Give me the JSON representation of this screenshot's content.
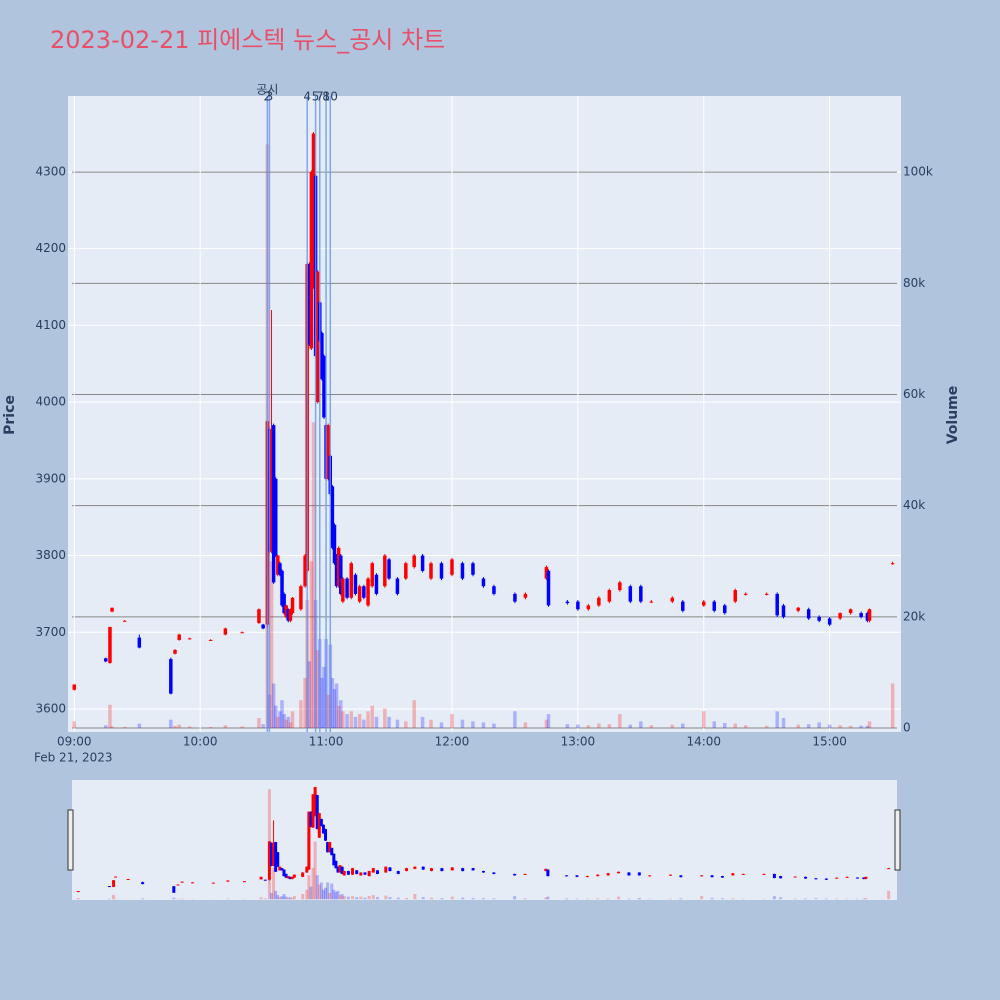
{
  "chart_data": {
    "type": "candlestick",
    "title": "2023-02-21 피에스텍 뉴스_공시 차트",
    "y_title": "Price",
    "y2_title": "Volume",
    "x_date_label": "Feb 21, 2023",
    "xlim": [
      "08:57",
      "15:34"
    ],
    "xticks": [
      "09:00",
      "10:00",
      "11:00",
      "12:00",
      "13:00",
      "14:00",
      "15:00"
    ],
    "ylim": [
      3570,
      4399
    ],
    "yticks": [
      3600,
      3700,
      3800,
      3900,
      4000,
      4100,
      4200,
      4300
    ],
    "y2lim": [
      -720,
      113700
    ],
    "y2ticks": [
      0,
      {
        "value": 20000,
        "label": "20k"
      },
      {
        "value": 40000,
        "label": "40k"
      },
      {
        "value": 60000,
        "label": "60k"
      },
      {
        "value": 80000,
        "label": "80k"
      },
      {
        "value": 100000,
        "label": "100k"
      }
    ],
    "increasing_color": "#ff0000",
    "decreasing_color": "#0000ff",
    "annotation_header": {
      "x": "10:32",
      "text": "공시"
    },
    "annotations": [
      {
        "x": "10:32",
        "text": "2"
      },
      {
        "x": "10:33",
        "text": "3"
      },
      {
        "x": "10:51",
        "text": "4"
      },
      {
        "x": "10:55",
        "text": "5"
      },
      {
        "x": "10:57",
        "text": "7"
      },
      {
        "x": "11:00",
        "text": "8"
      },
      {
        "x": "11:02",
        "text": "10"
      }
    ],
    "x": [
      "09:00",
      "09:15",
      "09:17",
      "09:18",
      "09:24",
      "09:31",
      "09:46",
      "09:48",
      "09:50",
      "09:55",
      "10:05",
      "10:12",
      "10:20",
      "10:28",
      "10:30",
      "10:32",
      "10:33",
      "10:34",
      "10:35",
      "10:36",
      "10:37",
      "10:38",
      "10:39",
      "10:40",
      "10:41",
      "10:42",
      "10:43",
      "10:44",
      "10:48",
      "10:50",
      "10:51",
      "10:52",
      "10:53",
      "10:54",
      "10:55",
      "10:56",
      "10:57",
      "10:58",
      "10:59",
      "11:00",
      "11:01",
      "11:02",
      "11:03",
      "11:04",
      "11:05",
      "11:06",
      "11:07",
      "11:08",
      "11:10",
      "11:12",
      "11:14",
      "11:16",
      "11:18",
      "11:20",
      "11:22",
      "11:24",
      "11:28",
      "11:30",
      "11:34",
      "11:38",
      "11:42",
      "11:46",
      "11:50",
      "11:55",
      "12:00",
      "12:05",
      "12:10",
      "12:15",
      "12:20",
      "12:30",
      "12:35",
      "12:45",
      "12:46",
      "12:55",
      "13:00",
      "13:05",
      "13:10",
      "13:15",
      "13:20",
      "13:25",
      "13:30",
      "13:35",
      "13:45",
      "13:50",
      "14:00",
      "14:05",
      "14:10",
      "14:15",
      "14:20",
      "14:30",
      "14:35",
      "14:38",
      "14:45",
      "14:50",
      "14:55",
      "15:00",
      "15:05",
      "15:10",
      "15:15",
      "15:18",
      "15:19",
      "15:30"
    ],
    "open": [
      3625,
      3666,
      3660,
      3727,
      3715,
      3693,
      3665,
      3672,
      3690,
      3692,
      3690,
      3697,
      3700,
      3712,
      3710,
      3710,
      3965,
      3805,
      3970,
      3900,
      3775,
      3790,
      3780,
      3750,
      3720,
      3730,
      3715,
      3725,
      3730,
      3760,
      3780,
      4180,
      4070,
      4150,
      4295,
      4000,
      4130,
      4090,
      4060,
      3970,
      3900,
      3930,
      3890,
      3840,
      3800,
      3760,
      3800,
      3740,
      3770,
      3745,
      3775,
      3740,
      3760,
      3735,
      3760,
      3775,
      3760,
      3795,
      3770,
      3770,
      3785,
      3800,
      3770,
      3790,
      3775,
      3790,
      3790,
      3770,
      3760,
      3750,
      3745,
      3770,
      3780,
      3740,
      3740,
      3730,
      3735,
      3740,
      3755,
      3760,
      3760,
      3740,
      3740,
      3740,
      3735,
      3740,
      3735,
      3740,
      3750,
      3750,
      3750,
      3735,
      3728,
      3730,
      3720,
      3718,
      3718,
      3725,
      3725,
      3725,
      3715,
      3790
    ],
    "high": [
      3632,
      3667,
      3707,
      3732,
      3716,
      3697,
      3667,
      3678,
      3698,
      3693,
      3691,
      3706,
      3701,
      3731,
      3711,
      3977,
      3968,
      4120,
      3972,
      3902,
      3801,
      3792,
      3782,
      3752,
      3736,
      3731,
      3731,
      3746,
      3762,
      3802,
      4182,
      4182,
      4302,
      4352,
      4297,
      4172,
      4132,
      4092,
      4062,
      3972,
      3972,
      3932,
      3892,
      3842,
      3802,
      3812,
      3802,
      3772,
      3772,
      3792,
      3777,
      3762,
      3762,
      3772,
      3792,
      3777,
      3802,
      3797,
      3772,
      3792,
      3802,
      3802,
      3792,
      3792,
      3797,
      3792,
      3792,
      3772,
      3762,
      3752,
      3752,
      3787,
      3782,
      3742,
      3742,
      3737,
      3747,
      3757,
      3767,
      3762,
      3762,
      3742,
      3747,
      3742,
      3742,
      3742,
      3737,
      3757,
      3752,
      3752,
      3752,
      3737,
      3733,
      3732,
      3722,
      3720,
      3726,
      3731,
      3727,
      3727,
      3731,
      3792
    ],
    "low": [
      3624,
      3661,
      3659,
      3726,
      3714,
      3679,
      3619,
      3671,
      3689,
      3691,
      3689,
      3696,
      3699,
      3711,
      3704,
      3705,
      3803,
      3803,
      3763,
      3798,
      3773,
      3773,
      3733,
      3723,
      3718,
      3713,
      3713,
      3723,
      3728,
      3758,
      3778,
      4073,
      4068,
      4148,
      4058,
      3998,
      4078,
      4028,
      3978,
      3898,
      3898,
      3878,
      3808,
      3788,
      3758,
      3758,
      3748,
      3738,
      3743,
      3743,
      3748,
      3738,
      3743,
      3733,
      3758,
      3748,
      3758,
      3768,
      3748,
      3768,
      3783,
      3778,
      3768,
      3768,
      3773,
      3768,
      3773,
      3758,
      3748,
      3738,
      3743,
      3768,
      3733,
      3736,
      3728,
      3728,
      3733,
      3738,
      3753,
      3738,
      3738,
      3738,
      3738,
      3726,
      3733,
      3726,
      3723,
      3738,
      3748,
      3748,
      3720,
      3718,
      3726,
      3716,
      3713,
      3708,
      3716,
      3723,
      3718,
      3713,
      3713,
      3788
    ],
    "close": [
      3632,
      3662,
      3707,
      3732,
      3715,
      3680,
      3620,
      3677,
      3697,
      3692,
      3690,
      3705,
      3700,
      3730,
      3705,
      3975,
      3805,
      3965,
      3765,
      3800,
      3800,
      3775,
      3735,
      3725,
      3735,
      3715,
      3730,
      3745,
      3760,
      3800,
      4180,
      4075,
      4300,
      4350,
      4060,
      4170,
      4080,
      4030,
      3980,
      3900,
      3970,
      3880,
      3810,
      3790,
      3760,
      3810,
      3750,
      3770,
      3745,
      3790,
      3750,
      3760,
      3745,
      3770,
      3790,
      3750,
      3800,
      3770,
      3750,
      3790,
      3800,
      3780,
      3790,
      3770,
      3795,
      3770,
      3775,
      3760,
      3750,
      3740,
      3750,
      3785,
      3735,
      3738,
      3730,
      3735,
      3745,
      3755,
      3765,
      3740,
      3740,
      3740,
      3745,
      3728,
      3740,
      3728,
      3725,
      3755,
      3750,
      3750,
      3722,
      3720,
      3732,
      3718,
      3715,
      3710,
      3725,
      3730,
      3720,
      3715,
      3730,
      3790
    ],
    "volume": [
      1200,
      500,
      4200,
      300,
      200,
      800,
      1500,
      400,
      600,
      300,
      200,
      500,
      300,
      1800,
      700,
      105000,
      6000,
      30000,
      8000,
      4000,
      2000,
      3000,
      5000,
      2500,
      1500,
      2000,
      1000,
      3000,
      5000,
      9000,
      23000,
      12000,
      30000,
      55000,
      23000,
      14000,
      16000,
      9000,
      11000,
      16000,
      6000,
      15000,
      9000,
      7000,
      8000,
      4000,
      5000,
      3000,
      2500,
      3000,
      2000,
      2500,
      1500,
      3000,
      4000,
      2000,
      3500,
      2000,
      1500,
      1200,
      5000,
      2000,
      1500,
      1000,
      2500,
      1500,
      1200,
      1000,
      800,
      3000,
      1000,
      1500,
      2500,
      700,
      600,
      500,
      800,
      700,
      2500,
      600,
      1200,
      500,
      600,
      800,
      3000,
      1200,
      900,
      800,
      500,
      400,
      3000,
      1800,
      600,
      700,
      1000,
      600,
      500,
      400,
      400,
      400,
      1200,
      8000
    ]
  }
}
